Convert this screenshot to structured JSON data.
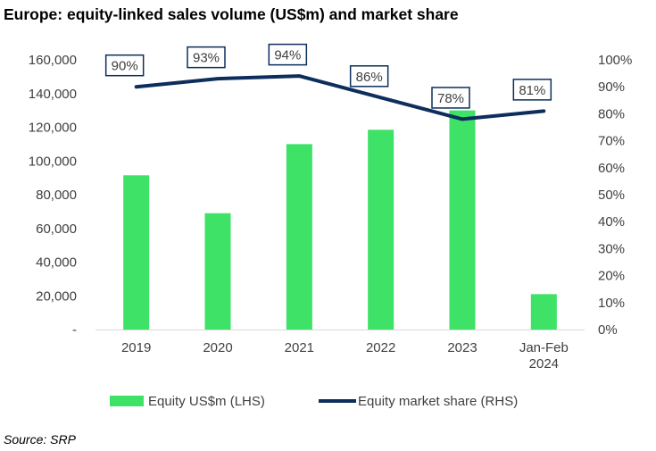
{
  "chart_data": {
    "type": "bar+line",
    "title": "Europe: equity-linked sales volume (US$m) and market share",
    "categories": [
      "2019",
      "2020",
      "2021",
      "2022",
      "2023",
      "Jan-Feb 2024"
    ],
    "series": [
      {
        "name": "Equity US$m (LHS)",
        "type": "bar",
        "axis": "left",
        "values": [
          91500,
          69000,
          110000,
          118500,
          130000,
          21000
        ]
      },
      {
        "name": "Equity market share (RHS)",
        "type": "line",
        "axis": "right",
        "values": [
          90,
          93,
          94,
          86,
          78,
          81
        ],
        "data_labels": [
          "90%",
          "93%",
          "94%",
          "86%",
          "78%",
          "81%"
        ]
      }
    ],
    "left_axis": {
      "ylim": [
        0,
        160000
      ],
      "tick_labels": [
        "-",
        "20,000",
        "40,000",
        "60,000",
        "80,000",
        "100,000",
        "120,000",
        "140,000",
        "160,000"
      ]
    },
    "right_axis": {
      "ylim": [
        0,
        100
      ],
      "tick_labels": [
        "0%",
        "10%",
        "20%",
        "30%",
        "40%",
        "50%",
        "60%",
        "70%",
        "80%",
        "90%",
        "100%"
      ]
    },
    "grid": false,
    "legend_position": "bottom",
    "colors": {
      "bar": "#3de266",
      "line": "#0d2e5c",
      "label_border": "#0d2e5c",
      "text": "#404040"
    }
  },
  "source": "Source: SRP"
}
